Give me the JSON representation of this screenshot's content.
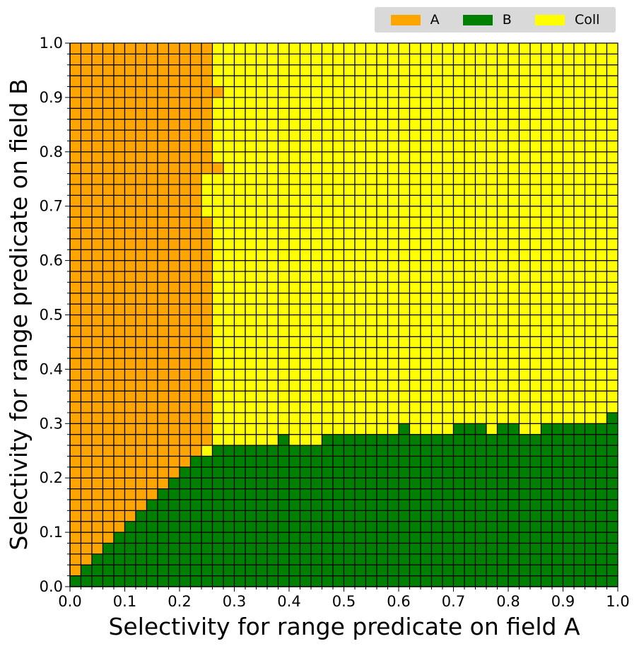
{
  "chart_data": {
    "type": "heatmap",
    "xlabel": "Selectivity for range predicate on field A",
    "ylabel": "Selectivity for range predicate on field B",
    "xlim": [
      0.0,
      1.0
    ],
    "ylim": [
      0.0,
      1.0
    ],
    "cell_size": 0.02,
    "x_ticks": [
      "0.0",
      "0.1",
      "0.2",
      "0.3",
      "0.4",
      "0.5",
      "0.6",
      "0.7",
      "0.8",
      "0.9",
      "1.0"
    ],
    "y_ticks": [
      "0.0",
      "0.1",
      "0.2",
      "0.3",
      "0.4",
      "0.5",
      "0.6",
      "0.7",
      "0.8",
      "0.9",
      "1.0"
    ],
    "legend": {
      "position": "top-right",
      "items": [
        {
          "key": "A",
          "label": "A",
          "color": "#ffa500"
        },
        {
          "key": "B",
          "label": "B",
          "color": "#008000"
        },
        {
          "key": "C",
          "label": "Coll",
          "color": "#ffff00"
        }
      ]
    },
    "grid_lines": true,
    "colors": {
      "A": "#ffa500",
      "B": "#008000",
      "C": "#ffff00"
    },
    "b_region_upper_boundary_y": [
      0.02,
      0.04,
      0.06,
      0.08,
      0.1,
      0.12,
      0.14,
      0.16,
      0.18,
      0.2,
      0.22,
      0.24,
      0.24,
      0.26,
      0.26,
      0.26,
      0.26,
      0.26,
      0.26,
      0.28,
      0.26,
      0.26,
      0.26,
      0.28,
      0.28,
      0.28,
      0.28,
      0.28,
      0.28,
      0.28,
      0.3,
      0.28,
      0.28,
      0.28,
      0.28,
      0.3,
      0.3,
      0.3,
      0.28,
      0.3,
      0.3,
      0.28,
      0.28,
      0.3,
      0.3,
      0.3,
      0.3,
      0.3,
      0.3,
      0.32
    ],
    "a_region_right_boundary_x": [
      {
        "y_range": [
          0.0,
          0.24
        ],
        "x_max_by_row": [
          0.0,
          0.02,
          0.04,
          0.06,
          0.08,
          0.1,
          0.12,
          0.14,
          0.16,
          0.18,
          0.2,
          0.22
        ]
      },
      {
        "y_range": [
          0.24,
          0.26
        ],
        "x_max": 0.24
      },
      {
        "y_range": [
          0.26,
          0.68
        ],
        "x_max": 0.26
      },
      {
        "y_range": [
          0.68,
          0.7
        ],
        "x_max": 0.24
      },
      {
        "y_range": [
          0.7,
          0.76
        ],
        "x_max": 0.24
      },
      {
        "y_range": [
          0.76,
          0.78
        ],
        "x_max": 0.28
      },
      {
        "y_range": [
          0.78,
          0.9
        ],
        "x_max": 0.26
      },
      {
        "y_range": [
          0.9,
          0.92
        ],
        "x_max": 0.28
      },
      {
        "y_range": [
          0.92,
          1.0
        ],
        "x_max": 0.26
      }
    ]
  }
}
